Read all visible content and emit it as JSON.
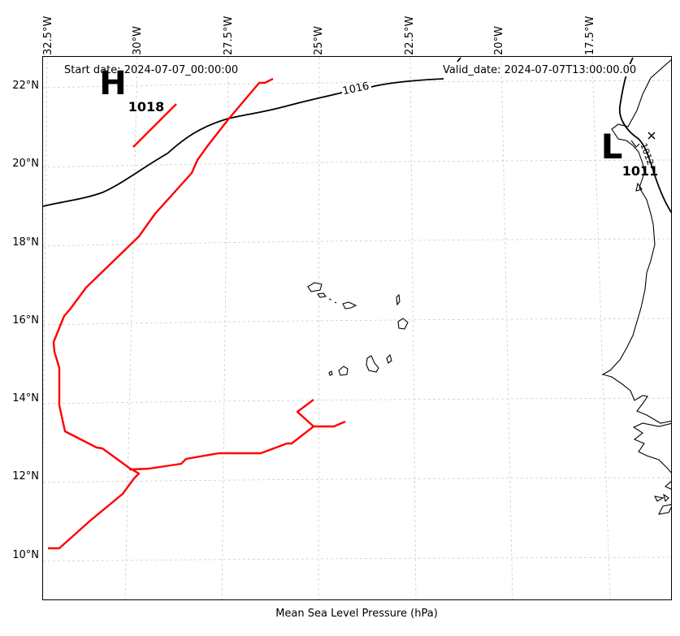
{
  "header": {
    "start_date": "Start date: 2024-07-07_00:00:00",
    "valid_date": "Valid_date: 2024-07-07T13:00:00.00"
  },
  "map": {
    "title_bottom": "Mean Sea Level Pressure (hPa)",
    "longitude_labels": [
      "32.5°W",
      "30°W",
      "27.5°W",
      "25°W",
      "22.5°W",
      "20°W",
      "17.5°W"
    ],
    "latitude_labels": [
      "22°N",
      "20°N",
      "18°N",
      "16°N",
      "14°N",
      "12°N",
      "10°N"
    ],
    "high_center": {
      "symbol": "H",
      "value": "1018"
    },
    "low_center": {
      "symbol": "L",
      "value": "1011"
    },
    "isobar_label": "1016",
    "isobar_label_right": "1012",
    "colors": {
      "isobar": "#000000",
      "front": "#ff0000",
      "coast": "#000000",
      "grid": "#cccccc"
    }
  }
}
